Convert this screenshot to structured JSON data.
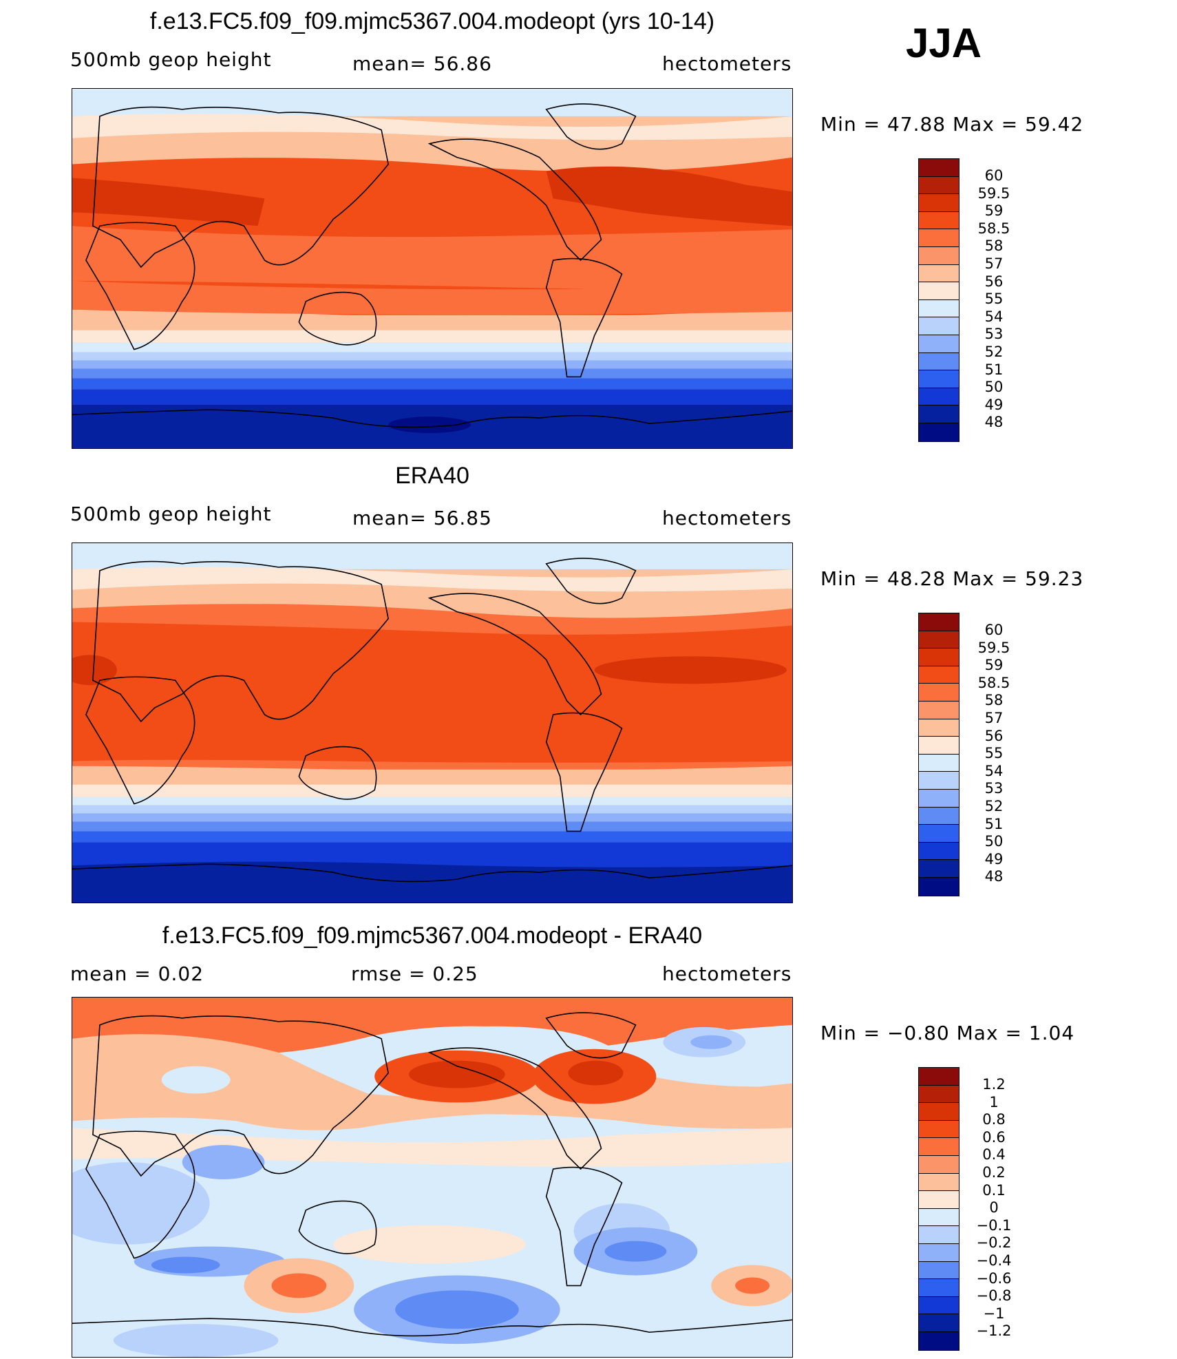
{
  "season": "JJA",
  "panels": [
    {
      "title": "f.e13.FC5.f09_f09.mjmc5367.004.modeopt (yrs 10-14)",
      "left_label": "500mb geop height",
      "center_label": "mean=   56.86",
      "right_label": "hectometers",
      "minmax": "Min =   47.88 Max =   59.42",
      "ticks": [
        "60",
        "59.5",
        "59",
        "58.5",
        "58",
        "57",
        "56",
        "55",
        "54",
        "53",
        "52",
        "51",
        "50",
        "49",
        "48"
      ],
      "colors": [
        "#8b0b0b",
        "#b52009",
        "#d93408",
        "#f24c17",
        "#fb6f3d",
        "#fc9469",
        "#fcc09a",
        "#fde7d6",
        "#d9ecfb",
        "#b9d2fb",
        "#8fb1fa",
        "#5f8bf5",
        "#2e60ef",
        "#1238d6",
        "#06219f",
        "#000c84"
      ]
    },
    {
      "title": "ERA40",
      "left_label": "500mb geop height",
      "center_label": "mean=   56.85",
      "right_label": "hectometers",
      "minmax": "Min =   48.28 Max =   59.23",
      "ticks": [
        "60",
        "59.5",
        "59",
        "58.5",
        "58",
        "57",
        "56",
        "55",
        "54",
        "53",
        "52",
        "51",
        "50",
        "49",
        "48"
      ],
      "colors": [
        "#8b0b0b",
        "#b52009",
        "#d93408",
        "#f24c17",
        "#fb6f3d",
        "#fc9469",
        "#fcc09a",
        "#fde7d6",
        "#d9ecfb",
        "#b9d2fb",
        "#8fb1fa",
        "#5f8bf5",
        "#2e60ef",
        "#1238d6",
        "#06219f",
        "#000c84"
      ]
    },
    {
      "title": "f.e13.FC5.f09_f09.mjmc5367.004.modeopt - ERA40",
      "left_label": "mean =     0.02",
      "center_label": "rmse =     0.25",
      "right_label": "hectometers",
      "minmax": "Min =   −0.80 Max =     1.04",
      "ticks": [
        "1.2",
        "1",
        "0.8",
        "0.6",
        "0.4",
        "0.2",
        "0.1",
        "0",
        "−0.1",
        "−0.2",
        "−0.4",
        "−0.6",
        "−0.8",
        "−1",
        "−1.2"
      ],
      "colors": [
        "#8b0b0b",
        "#b52009",
        "#d93408",
        "#f24c17",
        "#fb6f3d",
        "#fc9469",
        "#fcc09a",
        "#fde7d6",
        "#d9ecfb",
        "#b9d2fb",
        "#8fb1fa",
        "#5f8bf5",
        "#2e60ef",
        "#1238d6",
        "#06219f",
        "#000c84"
      ]
    }
  ]
}
